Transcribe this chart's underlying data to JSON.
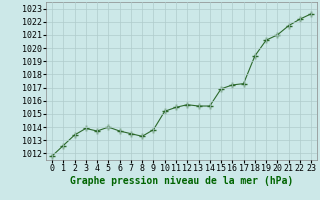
{
  "x": [
    0,
    1,
    2,
    3,
    4,
    5,
    6,
    7,
    8,
    9,
    10,
    11,
    12,
    13,
    14,
    15,
    16,
    17,
    18,
    19,
    20,
    21,
    22,
    23
  ],
  "y": [
    1011.8,
    1012.6,
    1013.4,
    1013.9,
    1013.7,
    1014.0,
    1013.7,
    1013.5,
    1013.3,
    1013.8,
    1015.2,
    1015.5,
    1015.7,
    1015.6,
    1015.6,
    1016.9,
    1017.2,
    1017.3,
    1019.4,
    1020.6,
    1021.0,
    1021.7,
    1022.2,
    1022.6
  ],
  "line_color": "#2d6a2d",
  "marker_color": "#2d6a2d",
  "bg_color": "#cce8e8",
  "grid_color": "#b0cccc",
  "xlabel": "Graphe pression niveau de la mer (hPa)",
  "xlabel_fontsize": 7,
  "tick_fontsize": 6,
  "ylim": [
    1011.5,
    1023.5
  ],
  "yticks": [
    1012,
    1013,
    1014,
    1015,
    1016,
    1017,
    1018,
    1019,
    1020,
    1021,
    1022,
    1023
  ],
  "xticks": [
    0,
    1,
    2,
    3,
    4,
    5,
    6,
    7,
    8,
    9,
    10,
    11,
    12,
    13,
    14,
    15,
    16,
    17,
    18,
    19,
    20,
    21,
    22,
    23
  ]
}
